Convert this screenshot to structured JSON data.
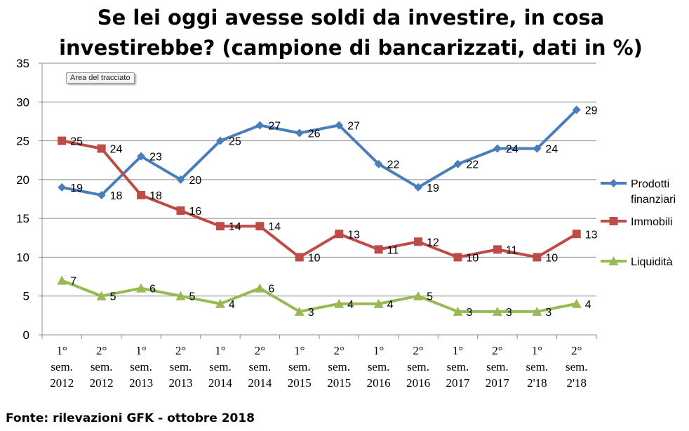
{
  "title": "Se lei oggi avesse soldi da investire, in cosa investirebbe? (campione di bancarizzati, dati in %)",
  "source": "Fonte: rilevazioni GFK - ottobre 2018",
  "plot_area_tag": "Area del tracciato",
  "chart_data": {
    "type": "line",
    "title": "Se lei oggi avesse soldi da investire, in cosa investirebbe? (campione di bancarizzati, dati in %)",
    "categories": [
      [
        "1°",
        "sem.",
        "2012"
      ],
      [
        "2°",
        "sem.",
        "2012"
      ],
      [
        "1°",
        "sem.",
        "2013"
      ],
      [
        "2°",
        "sem.",
        "2013"
      ],
      [
        "1°",
        "sem.",
        "2014"
      ],
      [
        "2°",
        "sem.",
        "2014"
      ],
      [
        "1°",
        "sem.",
        "2015"
      ],
      [
        "2°",
        "sem.",
        "2015"
      ],
      [
        "1°",
        "sem.",
        "2016"
      ],
      [
        "2°",
        "sem.",
        "2016"
      ],
      [
        "1°",
        "sem.",
        "2017"
      ],
      [
        "2°",
        "sem.",
        "2017"
      ],
      [
        "1°",
        "sem.",
        "2'18"
      ],
      [
        "2°",
        "sem.",
        "2'18"
      ]
    ],
    "ylim": [
      0,
      35
    ],
    "yticks": [
      0,
      5,
      10,
      15,
      20,
      25,
      30,
      35
    ],
    "grid": true,
    "legend_position": "right",
    "series": [
      {
        "name": "Prodotti finanziari",
        "legend_lines": [
          "Prodotti",
          "finanziari"
        ],
        "color": "#4a7ebb",
        "marker": "diamond",
        "values": [
          19,
          18,
          23,
          20,
          25,
          27,
          26,
          27,
          22,
          19,
          22,
          24,
          24,
          29
        ]
      },
      {
        "name": "Immobili",
        "legend_lines": [
          "Immobili"
        ],
        "color": "#be4b48",
        "marker": "square",
        "values": [
          25,
          24,
          18,
          16,
          14,
          14,
          10,
          13,
          11,
          12,
          10,
          11,
          10,
          13
        ]
      },
      {
        "name": "Liquidità",
        "legend_lines": [
          "Liquidità"
        ],
        "color": "#98b954",
        "marker": "triangle",
        "values": [
          7,
          5,
          6,
          5,
          4,
          6,
          3,
          4,
          4,
          5,
          3,
          3,
          3,
          4
        ]
      }
    ]
  }
}
